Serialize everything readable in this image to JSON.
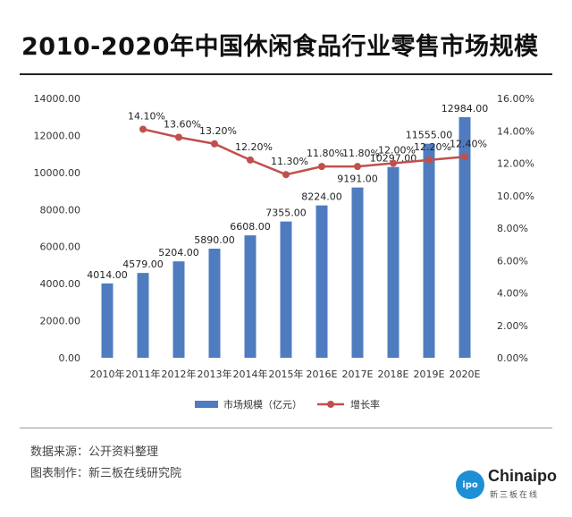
{
  "title": "2010-2020年中国休闲食品行业零售市场规模",
  "source": {
    "data_source": "数据来源：公开资料整理",
    "made_by": "图表制作：新三板在线研究院"
  },
  "logo": {
    "mark": "Chinaipo",
    "badge": "ipo",
    "name": "新三板在线"
  },
  "colors": {
    "bar": "#4f7cbf",
    "line": "#c0504d"
  },
  "chart_data": {
    "type": "bar",
    "title": "2010-2020年中国休闲食品行业零售市场规模",
    "categories": [
      "2010年",
      "2011年",
      "2012年",
      "2013年",
      "2014年",
      "2015年",
      "2016E",
      "2017E",
      "2018E",
      "2019E",
      "2020E"
    ],
    "series": [
      {
        "name": "市场规模（亿元）",
        "type": "bar",
        "axis": "left",
        "values": [
          4014,
          4579,
          5204,
          5890,
          6608,
          7355,
          8224,
          9191,
          10297,
          11555,
          12984
        ],
        "labels": [
          "4014.00",
          "4579.00",
          "5204.00",
          "5890.00",
          "6608.00",
          "7355.00",
          "8224.00",
          "9191.00",
          "10297.00",
          "11555.00",
          "12984.00"
        ]
      },
      {
        "name": "增长率",
        "type": "line",
        "axis": "right",
        "values": [
          null,
          14.1,
          13.6,
          13.2,
          12.2,
          11.3,
          11.8,
          11.8,
          12.0,
          12.2,
          12.4
        ],
        "labels": [
          "",
          "14.10%",
          "13.60%",
          "13.20%",
          "12.20%",
          "11.30%",
          "11.80%",
          "11.80%",
          "12.00%",
          "12.20%",
          "12.40%"
        ]
      }
    ],
    "ylim_left": [
      0,
      14000
    ],
    "ylim_right": [
      0,
      16
    ],
    "yticks_left": [
      "0.00",
      "2000.00",
      "4000.00",
      "6000.00",
      "8000.00",
      "10000.00",
      "12000.00",
      "14000.00"
    ],
    "yticks_right": [
      "0.00%",
      "2.00%",
      "4.00%",
      "6.00%",
      "8.00%",
      "10.00%",
      "12.00%",
      "14.00%",
      "16.00%"
    ],
    "legend_position": "bottom-center",
    "grid": false
  }
}
